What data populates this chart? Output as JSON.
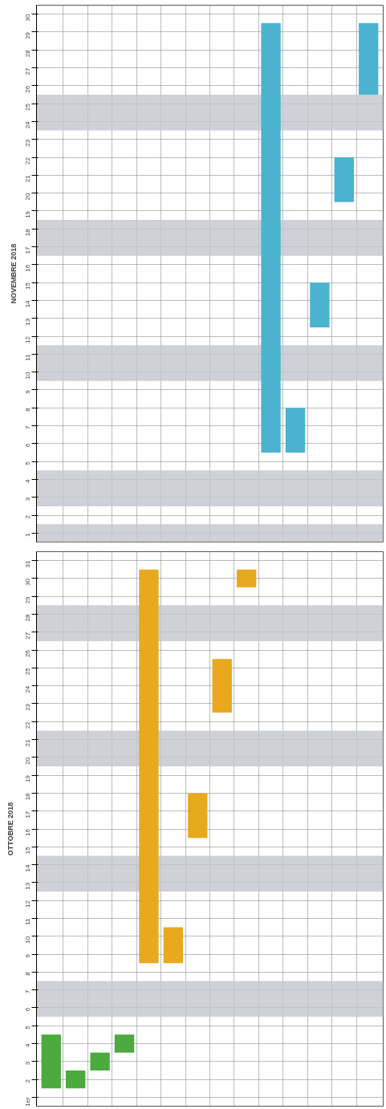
{
  "chart_data": [
    {
      "type": "bar",
      "title": "NOVEMBRE 2018",
      "categories": [
        null,
        null,
        null,
        null,
        null,
        null,
        null,
        null,
        null,
        null,
        null,
        null,
        null,
        null
      ],
      "values": [
        null,
        null,
        null,
        null,
        null,
        null,
        null,
        null,
        null,
        24,
        2.5,
        2.5,
        2.5,
        4
      ],
      "base": [
        null,
        null,
        null,
        null,
        null,
        null,
        null,
        null,
        null,
        5.5,
        5.5,
        12.5,
        19.5,
        25.5
      ],
      "colors": [
        "#4bb3cf",
        "#4bb3cf",
        "#4bb3cf",
        "#4bb3cf",
        "#4bb3cf",
        "#4bb3cf",
        "#4bb3cf",
        "#4bb3cf",
        "#4bb3cf",
        "#4bb3cf",
        "#4bb3cf",
        "#4bb3cf",
        "#4bb3cf",
        "#4bb3cf"
      ],
      "ylim": [
        0.5,
        30.5
      ],
      "yticks": [
        1,
        2,
        3,
        4,
        5,
        6,
        7,
        8,
        9,
        10,
        11,
        12,
        13,
        14,
        15,
        16,
        17,
        18,
        19,
        20,
        21,
        22,
        23,
        24,
        25,
        26,
        27,
        28,
        29,
        30
      ],
      "bands": [
        {
          "axis": "y",
          "from": 0.5,
          "to": 1.5,
          "color": "#c3c6cc"
        },
        {
          "axis": "y",
          "from": 2.5,
          "to": 4.5,
          "color": "#c3c6cc"
        },
        {
          "axis": "y",
          "from": 9.5,
          "to": 11.5,
          "color": "#c3c6cc"
        },
        {
          "axis": "y",
          "from": 16.5,
          "to": 18.5,
          "color": "#c3c6cc"
        },
        {
          "axis": "y",
          "from": 23.5,
          "to": 25.5,
          "color": "#c3c6cc"
        }
      ],
      "grid": true
    },
    {
      "type": "bar",
      "title": "OTTOBRE 2018",
      "categories": [
        null,
        null,
        null,
        null,
        null,
        null,
        null,
        null,
        null,
        null,
        null,
        null,
        null,
        null
      ],
      "values": [
        3,
        1,
        1,
        1,
        22,
        2,
        2.5,
        3,
        1,
        null,
        null,
        null,
        null,
        null
      ],
      "base": [
        1.5,
        1.5,
        2.5,
        3.5,
        8.5,
        8.5,
        15.5,
        22.5,
        29.5,
        null,
        null,
        null,
        null,
        null
      ],
      "colors": [
        "#4caa3e",
        "#4caa3e",
        "#4caa3e",
        "#4caa3e",
        "#e9a91f",
        "#e9a91f",
        "#e9a91f",
        "#e9a91f",
        "#e9a91f",
        "#e9a91f",
        "#e9a91f",
        "#e9a91f",
        "#e9a91f",
        "#e9a91f"
      ],
      "ylim": [
        0.5,
        31.5
      ],
      "yticks": [
        {
          "value": 1,
          "label": "1er"
        },
        2,
        3,
        4,
        5,
        6,
        7,
        8,
        9,
        10,
        11,
        12,
        13,
        14,
        15,
        16,
        17,
        18,
        19,
        20,
        21,
        22,
        23,
        24,
        25,
        26,
        27,
        28,
        29,
        30,
        31
      ],
      "bands": [
        {
          "axis": "y",
          "from": 5.5,
          "to": 7.5,
          "color": "#c3c6cc"
        },
        {
          "axis": "y",
          "from": 12.5,
          "to": 14.5,
          "color": "#c3c6cc"
        },
        {
          "axis": "y",
          "from": 19.5,
          "to": 21.5,
          "color": "#c3c6cc"
        },
        {
          "axis": "y",
          "from": 26.5,
          "to": 28.5,
          "color": "#c3c6cc"
        }
      ],
      "grid": true
    }
  ]
}
